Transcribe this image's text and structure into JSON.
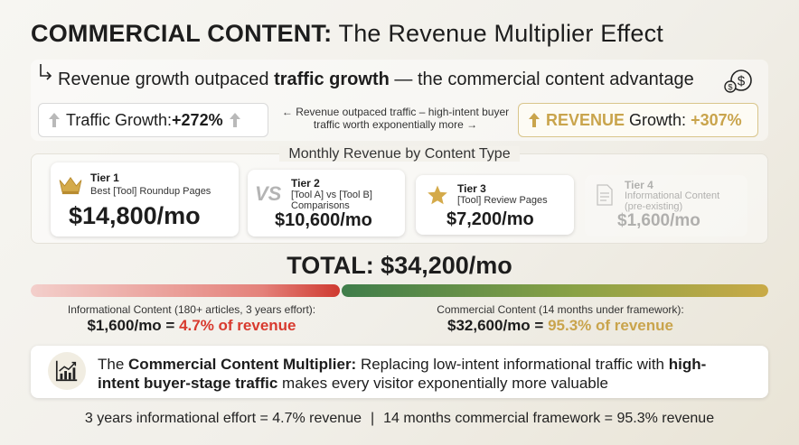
{
  "title": {
    "bold": "COMMERCIAL CONTENT:",
    "rest": " The Revenue Multiplier Effect"
  },
  "headline": {
    "pre": "Revenue growth outpaced ",
    "bold": "traffic growth",
    "post": " — the commercial content advantage"
  },
  "traffic": {
    "label": "Traffic Growth: ",
    "value": "+272%",
    "growth_pct": 272
  },
  "middle_note": "Revenue outpaced traffic – high-intent buyer traffic worth exponentially more",
  "revenue": {
    "word": "REVENUE",
    "label": " Growth: ",
    "value": "+307%",
    "growth_pct": 307
  },
  "tiers_heading": "Monthly Revenue by Content Type",
  "tiers": [
    {
      "name": "Tier 1",
      "desc": "Best [Tool] Roundup Pages",
      "amount": "$14,800/mo",
      "icon": "crown-icon"
    },
    {
      "name": "Tier 2",
      "desc": "[Tool A] vs [Tool B] Comparisons",
      "amount": "$10,600/mo",
      "icon": "vs-icon"
    },
    {
      "name": "Tier 3",
      "desc": "[Tool] Review Pages",
      "amount": "$7,200/mo",
      "icon": "star-icon"
    },
    {
      "name": "Tier 4",
      "desc": "Informational Content (pre-existing)",
      "amount": "$1,600/mo",
      "icon": "document-icon"
    }
  ],
  "total": "TOTAL: $34,200/mo",
  "split": {
    "informational_pct": 4.7,
    "commercial_pct": 95.3,
    "informational_label": "Informational Content (180+ articles, 3 years effort):",
    "informational_value": "$1,600/mo = ",
    "informational_pct_text": "4.7% of revenue",
    "commercial_label": "Commercial Content (14 months under framework):",
    "commercial_value": "$32,600/mo = ",
    "commercial_pct_text": "95.3% of revenue"
  },
  "callout": {
    "p1": "The ",
    "b1": "Commercial Content Multiplier:",
    "p2": " Replacing low-intent informational traffic with ",
    "b2": "high-intent buyer-stage traffic",
    "p3": " makes every visitor exponentially more valuable",
    "icon": "chart-growth-icon"
  },
  "footer": {
    "left": "3 years informational effort = 4.7% revenue",
    "sep": "|",
    "right": "14 months commercial framework = 95.3% revenue"
  },
  "colors": {
    "gold": "#c9a44c",
    "red": "#d83a2e",
    "green": "#3f7d4a"
  }
}
